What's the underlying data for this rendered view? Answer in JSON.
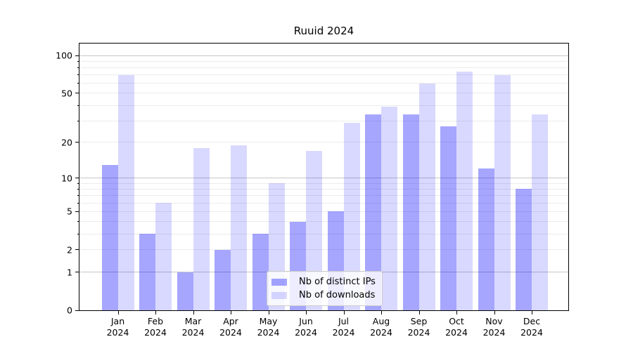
{
  "chart_data": {
    "type": "bar",
    "title": "Ruuid 2024",
    "categories": [
      "Jan 2024",
      "Feb 2024",
      "Mar 2024",
      "Apr 2024",
      "May 2024",
      "Jun 2024",
      "Jul 2024",
      "Aug 2024",
      "Sep 2024",
      "Oct 2024",
      "Nov 2024",
      "Dec 2024"
    ],
    "series": [
      {
        "name": "Nb of distinct IPs",
        "color": "rgba(0,0,255,0.35)",
        "values": [
          13,
          3,
          1,
          2,
          3,
          4,
          5,
          34,
          34,
          27,
          12,
          8
        ]
      },
      {
        "name": "Nb of downloads",
        "color": "rgba(0,0,255,0.15)",
        "values": [
          70,
          6,
          18,
          19,
          9,
          17,
          29,
          39,
          60,
          75,
          70,
          34
        ]
      }
    ],
    "xlabel": "",
    "ylabel": "",
    "yscale": "log10(1+value)",
    "ylim": [
      0,
      124
    ],
    "yticks": [
      0,
      1,
      2,
      5,
      10,
      20,
      50,
      100
    ],
    "grid_major": [
      1,
      10,
      100
    ],
    "grid_minor": [
      2,
      3,
      4,
      5,
      6,
      7,
      8,
      9,
      20,
      30,
      40,
      50,
      60,
      70,
      80,
      90
    ],
    "legend_position": "lower center",
    "grid": "on"
  }
}
